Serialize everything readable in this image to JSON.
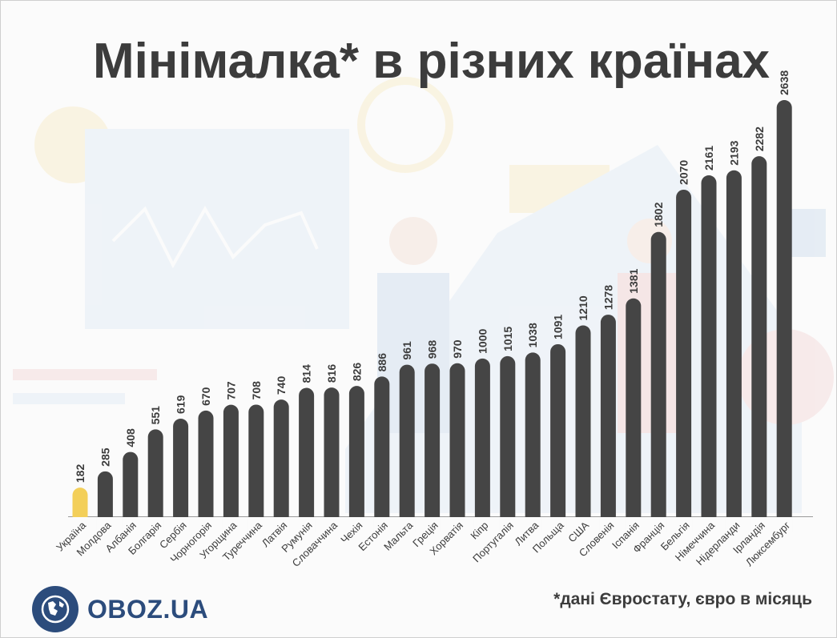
{
  "brand": {
    "name": "OBOZ.UA",
    "icon": "globe-icon"
  },
  "footnote": "*дані Євростату, євро в місяць",
  "colors": {
    "highlight": "#f3cf59",
    "bar": "#454545",
    "text": "#3c3c3c",
    "brand": "#2c4c7c"
  },
  "chart_data": {
    "type": "bar",
    "title": "Мінімалка* в різних країнах",
    "xlabel": "",
    "ylabel": "",
    "ylim": [
      0,
      2638
    ],
    "grid": false,
    "highlight_category": "Україна",
    "categories": [
      "Україна",
      "Молдова",
      "Албанія",
      "Болгарія",
      "Сербія",
      "Чорногорія",
      "Угорщина",
      "Туреччина",
      "Латвія",
      "Румунія",
      "Словаччина",
      "Чехія",
      "Естонія",
      "Мальта",
      "Греція",
      "Хорватія",
      "Кіпр",
      "Португалія",
      "Литва",
      "Польща",
      "США",
      "Словенія",
      "Іспанія",
      "Франція",
      "Бельгія",
      "Німеччина",
      "Нідерланди",
      "Ірландія",
      "Люксембург"
    ],
    "values": [
      182,
      285,
      408,
      551,
      619,
      670,
      707,
      708,
      740,
      814,
      816,
      826,
      886,
      961,
      968,
      970,
      1000,
      1015,
      1038,
      1091,
      1210,
      1278,
      1381,
      1802,
      2070,
      2161,
      2193,
      2282,
      2638
    ]
  }
}
